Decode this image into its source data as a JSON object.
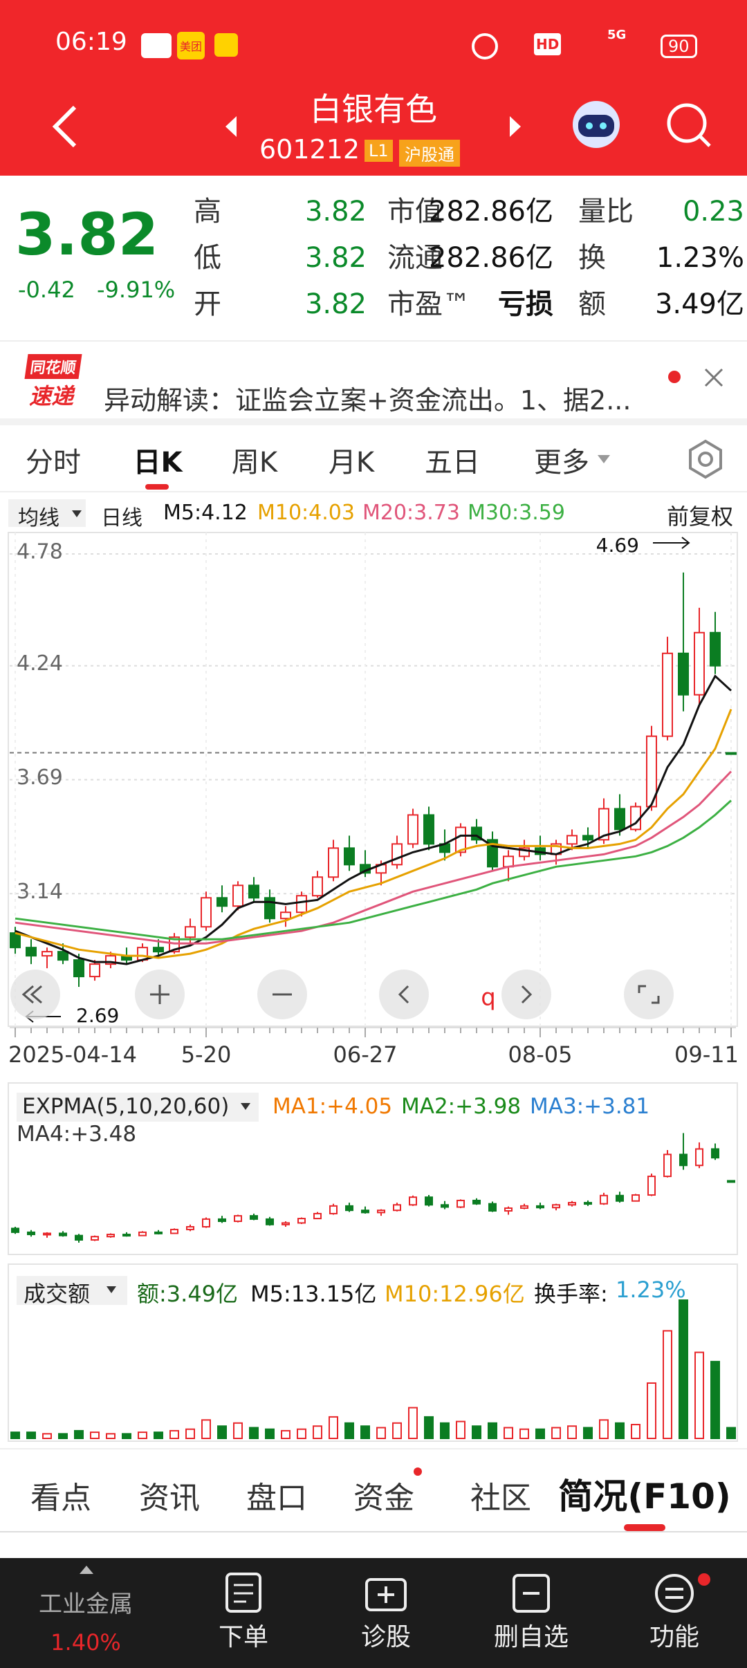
{
  "status": {
    "time": "06:19",
    "apps": [
      "美团"
    ],
    "hd": "HD",
    "network": "5G",
    "battery": "90"
  },
  "header": {
    "title": "白银有色",
    "code": "601212",
    "badges": [
      "L1",
      "沪股通"
    ]
  },
  "quote": {
    "price": "3.82",
    "change": "-0.42",
    "change_pct": "-9.91%",
    "rows": [
      [
        "高",
        "3.82",
        "市值",
        "282.86亿",
        "量比",
        "0.23"
      ],
      [
        "低",
        "3.82",
        "流通",
        "282.86亿",
        "换",
        "1.23%"
      ],
      [
        "开",
        "3.82",
        "市盈™",
        "亏损",
        "额",
        "3.49亿"
      ]
    ]
  },
  "news": {
    "logo_top": "同花顺",
    "logo_bottom": "速递",
    "text": "异动解读：证监会立案+资金流出。1、据2..."
  },
  "tabs": {
    "items": [
      "分时",
      "日K",
      "周K",
      "月K",
      "五日",
      "更多"
    ],
    "active": "日K"
  },
  "ma_legend": {
    "selector": "均线",
    "period": "日线",
    "labels": [
      "M5:4.12",
      "M10:4.03",
      "M20:3.73",
      "M30:3.59"
    ],
    "adjust": "前复权"
  },
  "chart_data": {
    "type": "candlestick",
    "categories": [
      "2025-04-14",
      null,
      null,
      null,
      null,
      null,
      null,
      null,
      null,
      null,
      null,
      null,
      "5-20",
      null,
      null,
      null,
      null,
      null,
      null,
      null,
      null,
      null,
      "06-27",
      null,
      null,
      null,
      null,
      null,
      null,
      null,
      null,
      null,
      null,
      "08-05",
      null,
      null,
      null,
      null,
      null,
      null,
      null,
      null,
      null,
      null,
      null,
      "09-11"
    ],
    "open": [
      2.95,
      2.88,
      2.84,
      2.86,
      2.82,
      2.74,
      2.8,
      2.84,
      2.82,
      2.88,
      2.86,
      2.93,
      2.98,
      3.12,
      3.08,
      3.18,
      3.12,
      3.02,
      3.05,
      3.13,
      3.22,
      3.36,
      3.28,
      3.24,
      3.28,
      3.38,
      3.52,
      3.38,
      3.34,
      3.46,
      3.4,
      3.27,
      3.32,
      3.36,
      3.33,
      3.38,
      3.42,
      3.4,
      3.55,
      3.45,
      3.56,
      3.9,
      4.3,
      4.1,
      4.4,
      3.82
    ],
    "high": [
      2.98,
      2.92,
      2.88,
      2.9,
      2.85,
      2.82,
      2.86,
      2.88,
      2.9,
      2.92,
      2.95,
      3.02,
      3.15,
      3.18,
      3.2,
      3.22,
      3.16,
      3.08,
      3.15,
      3.25,
      3.4,
      3.42,
      3.35,
      3.3,
      3.42,
      3.55,
      3.56,
      3.45,
      3.48,
      3.5,
      3.44,
      3.35,
      3.4,
      3.42,
      3.4,
      3.45,
      3.46,
      3.6,
      3.62,
      3.58,
      3.95,
      4.38,
      4.69,
      4.52,
      4.5,
      3.82
    ],
    "low": [
      2.85,
      2.8,
      2.78,
      2.8,
      2.69,
      2.72,
      2.78,
      2.8,
      2.81,
      2.84,
      2.85,
      2.9,
      2.96,
      3.05,
      3.06,
      3.1,
      3.0,
      2.98,
      3.03,
      3.12,
      3.2,
      3.25,
      3.22,
      3.18,
      3.26,
      3.36,
      3.35,
      3.3,
      3.32,
      3.38,
      3.25,
      3.2,
      3.3,
      3.3,
      3.28,
      3.35,
      3.36,
      3.38,
      3.42,
      3.44,
      3.54,
      3.88,
      4.02,
      4.05,
      4.2,
      3.82
    ],
    "close": [
      2.88,
      2.84,
      2.86,
      2.82,
      2.74,
      2.8,
      2.84,
      2.82,
      2.88,
      2.86,
      2.93,
      2.98,
      3.12,
      3.08,
      3.18,
      3.12,
      3.02,
      3.05,
      3.13,
      3.22,
      3.36,
      3.28,
      3.24,
      3.28,
      3.38,
      3.52,
      3.38,
      3.34,
      3.46,
      3.4,
      3.27,
      3.32,
      3.36,
      3.33,
      3.38,
      3.42,
      3.4,
      3.55,
      3.45,
      3.56,
      3.9,
      4.3,
      4.1,
      4.4,
      4.24,
      3.82
    ],
    "up_color": "#e8262a",
    "down_color": "#0b7d22",
    "series": [
      {
        "color": "#111111",
        "values": [
          2.96,
          2.93,
          2.9,
          2.87,
          2.83,
          2.81,
          2.81,
          2.8,
          2.82,
          2.84,
          2.87,
          2.89,
          2.93,
          2.99,
          3.07,
          3.1,
          3.1,
          3.09,
          3.1,
          3.11,
          3.16,
          3.21,
          3.25,
          3.28,
          3.31,
          3.34,
          3.36,
          3.38,
          3.42,
          3.42,
          3.37,
          3.36,
          3.35,
          3.34,
          3.33,
          3.36,
          3.38,
          3.42,
          3.44,
          3.48,
          3.57,
          3.75,
          3.86,
          4.05,
          4.19,
          4.12
        ]
      },
      {
        "color": "#e6a100",
        "values": [
          2.95,
          2.93,
          2.91,
          2.89,
          2.87,
          2.86,
          2.85,
          2.84,
          2.84,
          2.83,
          2.84,
          2.85,
          2.87,
          2.9,
          2.94,
          2.97,
          2.99,
          3.01,
          3.04,
          3.07,
          3.11,
          3.15,
          3.17,
          3.19,
          3.22,
          3.25,
          3.28,
          3.31,
          3.35,
          3.37,
          3.38,
          3.37,
          3.37,
          3.37,
          3.37,
          3.36,
          3.36,
          3.37,
          3.38,
          3.4,
          3.46,
          3.55,
          3.62,
          3.73,
          3.84,
          4.03
        ]
      },
      {
        "color": "#e0557a",
        "values": [
          3.0,
          2.99,
          2.98,
          2.97,
          2.96,
          2.95,
          2.94,
          2.93,
          2.92,
          2.91,
          2.9,
          2.9,
          2.9,
          2.91,
          2.92,
          2.93,
          2.94,
          2.95,
          2.96,
          2.98,
          3.0,
          3.03,
          3.06,
          3.09,
          3.12,
          3.15,
          3.17,
          3.19,
          3.21,
          3.23,
          3.25,
          3.27,
          3.28,
          3.29,
          3.3,
          3.31,
          3.32,
          3.33,
          3.35,
          3.37,
          3.41,
          3.46,
          3.51,
          3.57,
          3.65,
          3.73
        ]
      },
      {
        "color": "#3cb043",
        "values": [
          3.02,
          3.01,
          3.0,
          2.99,
          2.98,
          2.97,
          2.96,
          2.95,
          2.94,
          2.93,
          2.92,
          2.92,
          2.92,
          2.92,
          2.93,
          2.94,
          2.95,
          2.96,
          2.97,
          2.98,
          2.99,
          3.0,
          3.02,
          3.04,
          3.06,
          3.08,
          3.1,
          3.12,
          3.14,
          3.16,
          3.19,
          3.21,
          3.23,
          3.25,
          3.27,
          3.28,
          3.29,
          3.3,
          3.31,
          3.32,
          3.34,
          3.37,
          3.41,
          3.46,
          3.52,
          3.59
        ]
      }
    ],
    "ylim": [
      2.5,
      4.86
    ],
    "yticks": [
      4.78,
      4.24,
      3.69,
      3.14
    ],
    "grid": true,
    "current_price": 3.82,
    "max_label": 4.69,
    "min_label": 2.69,
    "control_marker": "q",
    "volume": [
      2,
      2,
      1.5,
      1.5,
      2.5,
      2,
      1.5,
      1.5,
      2,
      2,
      2.5,
      3,
      6,
      4,
      5,
      3.5,
      3,
      2.5,
      3,
      4,
      7,
      5,
      4,
      3.5,
      5,
      10,
      7,
      5,
      5.5,
      4,
      5,
      3.5,
      3,
      3,
      3.5,
      4,
      3.5,
      6,
      5,
      4.5,
      18,
      35,
      45,
      28,
      25,
      3.49
    ],
    "volume_ylim": [
      0,
      45
    ]
  },
  "expma_legend": {
    "selector": "EXPMA(5,10,20,60)",
    "labels": [
      "MA1:+4.05",
      "MA2:+3.98",
      "MA3:+3.81",
      "MA4:+3.48"
    ]
  },
  "volume_legend": {
    "selector": "成交额",
    "labels": [
      "额:3.49亿",
      "M5:13.15亿",
      "M10:12.96亿",
      "换手率:"
    ],
    "turnover": "1.23%"
  },
  "bottom_tabs": {
    "items": [
      "看点",
      "资讯",
      "盘口",
      "资金",
      "社区",
      "简况(F10)"
    ],
    "active": "简况(F10)"
  },
  "nav": {
    "sector": "工业金属",
    "sector_change": "1.40%",
    "items": [
      "下单",
      "诊股",
      "删自选",
      "功能"
    ]
  }
}
